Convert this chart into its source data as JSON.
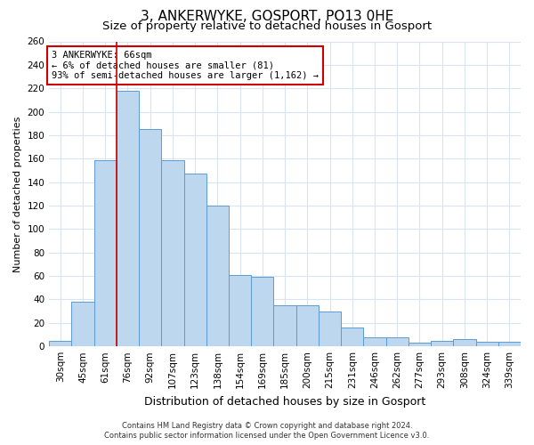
{
  "title": "3, ANKERWYKE, GOSPORT, PO13 0HE",
  "subtitle": "Size of property relative to detached houses in Gosport",
  "xlabel": "Distribution of detached houses by size in Gosport",
  "ylabel": "Number of detached properties",
  "categories": [
    "30sqm",
    "45sqm",
    "61sqm",
    "76sqm",
    "92sqm",
    "107sqm",
    "123sqm",
    "138sqm",
    "154sqm",
    "169sqm",
    "185sqm",
    "200sqm",
    "215sqm",
    "231sqm",
    "246sqm",
    "262sqm",
    "277sqm",
    "293sqm",
    "308sqm",
    "324sqm",
    "339sqm"
  ],
  "values": [
    5,
    38,
    159,
    218,
    185,
    159,
    147,
    120,
    61,
    59,
    35,
    35,
    30,
    16,
    8,
    8,
    3,
    5,
    6,
    4,
    4
  ],
  "bar_color": "#bdd7ee",
  "bar_edge_color": "#5b9bd5",
  "vline_x": 2.5,
  "vline_color": "#cc0000",
  "ylim": [
    0,
    260
  ],
  "yticks": [
    0,
    20,
    40,
    60,
    80,
    100,
    120,
    140,
    160,
    180,
    200,
    220,
    240,
    260
  ],
  "annotation_line1": "3 ANKERWYKE: 66sqm",
  "annotation_line2": "← 6% of detached houses are smaller (81)",
  "annotation_line3": "93% of semi-detached houses are larger (1,162) →",
  "annotation_box_color": "#ffffff",
  "annotation_box_edge": "#cc0000",
  "footer1": "Contains HM Land Registry data © Crown copyright and database right 2024.",
  "footer2": "Contains public sector information licensed under the Open Government Licence v3.0.",
  "background_color": "#ffffff",
  "grid_color": "#d9e4f0",
  "title_fontsize": 11,
  "subtitle_fontsize": 9.5,
  "xlabel_fontsize": 9,
  "ylabel_fontsize": 8,
  "tick_fontsize": 7.5,
  "annot_fontsize": 7.5,
  "footer_fontsize": 6
}
